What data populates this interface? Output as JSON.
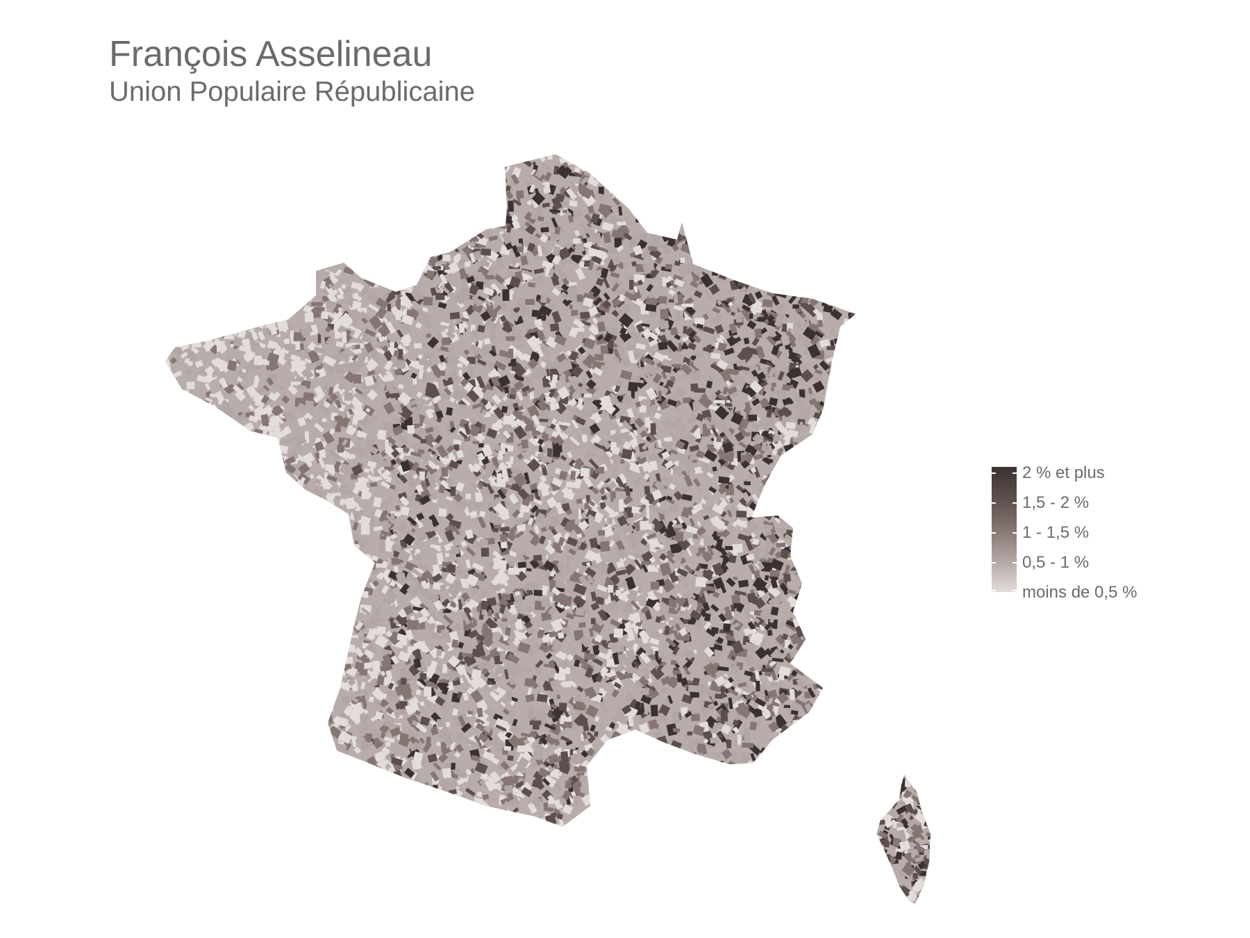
{
  "map": {
    "title": "François Asselineau",
    "subtitle": "Union Populaire Républicaine",
    "legend": {
      "items": [
        {
          "label": "2 % et plus",
          "color": "#3a3130"
        },
        {
          "label": "1,5 - 2 %",
          "color": "#5c4f4d"
        },
        {
          "label": "1 - 1,5 %",
          "color": "#857573"
        },
        {
          "label": "0,5 - 1 %",
          "color": "#b3a7a5"
        },
        {
          "label": "moins de 0,5 %",
          "color": "#e2dcdb"
        }
      ]
    },
    "regions": [
      "France métropolitaine",
      "Corse"
    ]
  }
}
